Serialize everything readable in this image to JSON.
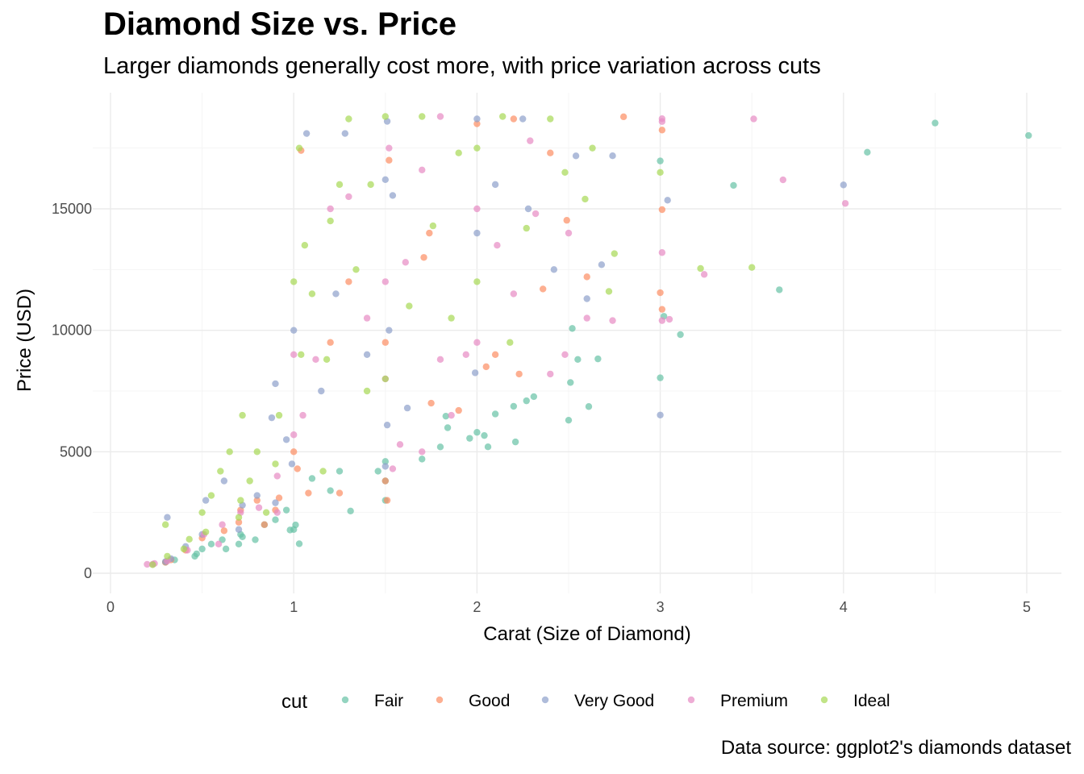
{
  "chart_data": {
    "type": "scatter",
    "title": "Diamond Size vs. Price",
    "subtitle": "Larger diamonds generally cost more, with price variation across cuts",
    "xlabel": "Carat (Size of Diamond)",
    "ylabel": "Price (USD)",
    "caption": "Data source: ggplot2's diamonds dataset",
    "xlim": [
      0,
      5.2
    ],
    "ylim": [
      0,
      19000
    ],
    "x_ticks": [
      0,
      1,
      2,
      3,
      4,
      5
    ],
    "y_ticks": [
      0,
      5000,
      10000,
      15000
    ],
    "x_tick_labels": [
      "0",
      "1",
      "2",
      "3",
      "4",
      "5"
    ],
    "y_tick_labels": [
      "0",
      "5000",
      "10000",
      "15000"
    ],
    "grid": true,
    "legend": {
      "title": "cut",
      "position": "bottom"
    },
    "series": [
      {
        "name": "Fair",
        "color": "#66C2A5",
        "points": [
          [
            5.01,
            18018
          ],
          [
            4.5,
            18531
          ],
          [
            4.13,
            17329
          ],
          [
            3.65,
            11668
          ],
          [
            3.4,
            15964
          ],
          [
            3.11,
            9823
          ],
          [
            3.02,
            10577
          ],
          [
            3.0,
            16970
          ],
          [
            3.0,
            8044
          ],
          [
            2.5,
            6300
          ],
          [
            2.51,
            7851
          ],
          [
            2.52,
            10076
          ],
          [
            2.55,
            8801
          ],
          [
            2.61,
            6861
          ],
          [
            2.66,
            8823
          ],
          [
            2.31,
            7269
          ],
          [
            2.27,
            7098
          ],
          [
            2.2,
            6872
          ],
          [
            2.1,
            6555
          ],
          [
            2.04,
            5669
          ],
          [
            2.0,
            5800
          ],
          [
            1.96,
            5554
          ],
          [
            2.06,
            5203
          ],
          [
            2.21,
            5405
          ],
          [
            1.84,
            5990
          ],
          [
            1.83,
            6466
          ],
          [
            1.8,
            5200
          ],
          [
            1.7,
            4700
          ],
          [
            1.5,
            3800
          ],
          [
            1.5,
            4600
          ],
          [
            1.46,
            4200
          ],
          [
            1.31,
            2562
          ],
          [
            1.03,
            1213
          ],
          [
            1.0,
            1800
          ],
          [
            0.98,
            1780
          ],
          [
            0.9,
            2200
          ],
          [
            0.84,
            2000
          ],
          [
            0.79,
            1380
          ],
          [
            0.7,
            1200
          ],
          [
            0.72,
            1500
          ],
          [
            0.61,
            1380
          ],
          [
            0.5,
            1000
          ],
          [
            0.47,
            800
          ],
          [
            0.35,
            550
          ],
          [
            0.3,
            450
          ],
          [
            0.96,
            2600
          ],
          [
            1.2,
            3400
          ],
          [
            1.1,
            3900
          ],
          [
            1.25,
            4200
          ],
          [
            1.5,
            3000
          ],
          [
            1.01,
            1990
          ],
          [
            0.71,
            1600
          ],
          [
            0.63,
            1000
          ],
          [
            0.55,
            1200
          ],
          [
            0.46,
            700
          ]
        ]
      },
      {
        "name": "Good",
        "color": "#FC8D62",
        "points": [
          [
            2.8,
            18788
          ],
          [
            3.01,
            18242
          ],
          [
            3.01,
            14967
          ],
          [
            3.0,
            11548
          ],
          [
            3.01,
            10863
          ],
          [
            2.49,
            14528
          ],
          [
            2.4,
            17300
          ],
          [
            2.2,
            18700
          ],
          [
            2.0,
            18500
          ],
          [
            2.1,
            9000
          ],
          [
            2.05,
            8500
          ],
          [
            1.74,
            14000
          ],
          [
            1.75,
            7000
          ],
          [
            1.5,
            9500
          ],
          [
            1.5,
            3800
          ],
          [
            1.51,
            3000
          ],
          [
            1.25,
            3300
          ],
          [
            1.08,
            3300
          ],
          [
            1.02,
            4300
          ],
          [
            1.0,
            5000
          ],
          [
            0.9,
            2600
          ],
          [
            0.92,
            3100
          ],
          [
            0.84,
            2000
          ],
          [
            0.8,
            3000
          ],
          [
            0.71,
            2600
          ],
          [
            0.7,
            2100
          ],
          [
            0.62,
            1750
          ],
          [
            0.5,
            1450
          ],
          [
            0.41,
            950
          ],
          [
            0.33,
            550
          ],
          [
            0.3,
            450
          ],
          [
            1.2,
            9500
          ],
          [
            1.3,
            12000
          ],
          [
            1.52,
            17000
          ],
          [
            1.04,
            17400
          ],
          [
            1.71,
            13000
          ],
          [
            1.9,
            6700
          ],
          [
            2.23,
            8200
          ],
          [
            2.36,
            11700
          ],
          [
            2.6,
            12200
          ]
        ]
      },
      {
        "name": "Very Good",
        "color": "#8DA0CB",
        "points": [
          [
            4.0,
            15984
          ],
          [
            3.04,
            15354
          ],
          [
            3.0,
            6512
          ],
          [
            2.54,
            17180
          ],
          [
            2.74,
            17184
          ],
          [
            2.68,
            12700
          ],
          [
            2.6,
            11300
          ],
          [
            2.25,
            18700
          ],
          [
            2.0,
            18700
          ],
          [
            2.0,
            14000
          ],
          [
            1.99,
            8250
          ],
          [
            1.51,
            18600
          ],
          [
            1.5,
            16200
          ],
          [
            1.54,
            15550
          ],
          [
            1.52,
            10000
          ],
          [
            1.5,
            4400
          ],
          [
            1.51,
            6100
          ],
          [
            1.28,
            18100
          ],
          [
            1.07,
            18100
          ],
          [
            1.0,
            10000
          ],
          [
            0.99,
            4500
          ],
          [
            0.96,
            5500
          ],
          [
            0.9,
            7800
          ],
          [
            0.9,
            2900
          ],
          [
            0.88,
            6400
          ],
          [
            0.8,
            3200
          ],
          [
            0.72,
            2800
          ],
          [
            0.7,
            1800
          ],
          [
            0.62,
            3800
          ],
          [
            0.52,
            3000
          ],
          [
            0.5,
            1600
          ],
          [
            0.41,
            1100
          ],
          [
            0.33,
            600
          ],
          [
            0.31,
            2300
          ],
          [
            0.3,
            480
          ],
          [
            1.15,
            7500
          ],
          [
            1.23,
            11500
          ],
          [
            1.4,
            9000
          ],
          [
            1.62,
            6800
          ],
          [
            2.1,
            16000
          ],
          [
            2.28,
            15000
          ],
          [
            2.42,
            12500
          ]
        ]
      },
      {
        "name": "Premium",
        "color": "#E78AC3",
        "points": [
          [
            4.01,
            15223
          ],
          [
            3.67,
            16193
          ],
          [
            3.51,
            18701
          ],
          [
            3.24,
            12300
          ],
          [
            3.05,
            10453
          ],
          [
            3.01,
            18593
          ],
          [
            3.01,
            18710
          ],
          [
            3.01,
            13200
          ],
          [
            3.01,
            10400
          ],
          [
            2.74,
            10400
          ],
          [
            2.6,
            10500
          ],
          [
            2.5,
            14000
          ],
          [
            2.48,
            9000
          ],
          [
            2.4,
            8200
          ],
          [
            2.29,
            17800
          ],
          [
            2.2,
            11500
          ],
          [
            2.0,
            15000
          ],
          [
            2.0,
            9500
          ],
          [
            1.94,
            9000
          ],
          [
            1.86,
            6500
          ],
          [
            1.8,
            18800
          ],
          [
            1.7,
            16600
          ],
          [
            1.7,
            5000
          ],
          [
            1.58,
            5300
          ],
          [
            1.54,
            4300
          ],
          [
            1.52,
            17500
          ],
          [
            1.5,
            12000
          ],
          [
            1.5,
            8000
          ],
          [
            1.3,
            15500
          ],
          [
            1.2,
            15000
          ],
          [
            1.12,
            8800
          ],
          [
            1.05,
            6500
          ],
          [
            1.0,
            9000
          ],
          [
            1.0,
            5700
          ],
          [
            0.91,
            2500
          ],
          [
            0.91,
            4000
          ],
          [
            0.81,
            2700
          ],
          [
            0.71,
            2500
          ],
          [
            0.61,
            2000
          ],
          [
            0.59,
            1200
          ],
          [
            0.51,
            1600
          ],
          [
            0.42,
            950
          ],
          [
            0.31,
            500
          ],
          [
            0.24,
            400
          ],
          [
            0.2,
            367
          ],
          [
            0.23,
            370
          ],
          [
            1.4,
            10500
          ],
          [
            1.61,
            12800
          ],
          [
            1.8,
            8800
          ],
          [
            2.11,
            13500
          ],
          [
            2.32,
            14800
          ]
        ]
      },
      {
        "name": "Ideal",
        "color": "#A6D854",
        "points": [
          [
            3.5,
            12587
          ],
          [
            3.22,
            12545
          ],
          [
            3.0,
            16500
          ],
          [
            2.75,
            13156
          ],
          [
            2.72,
            11600
          ],
          [
            2.59,
            15400
          ],
          [
            2.63,
            17500
          ],
          [
            2.48,
            16500
          ],
          [
            2.4,
            18700
          ],
          [
            2.14,
            18800
          ],
          [
            2.0,
            17500
          ],
          [
            2.0,
            12000
          ],
          [
            1.9,
            17300
          ],
          [
            1.7,
            18800
          ],
          [
            1.76,
            14300
          ],
          [
            1.5,
            18800
          ],
          [
            1.5,
            8000
          ],
          [
            1.42,
            16000
          ],
          [
            1.4,
            7500
          ],
          [
            1.3,
            18700
          ],
          [
            1.25,
            16000
          ],
          [
            1.2,
            14500
          ],
          [
            1.16,
            4200
          ],
          [
            1.1,
            11500
          ],
          [
            1.04,
            9000
          ],
          [
            1.03,
            17500
          ],
          [
            1.0,
            12000
          ],
          [
            0.92,
            6500
          ],
          [
            0.9,
            4500
          ],
          [
            0.85,
            2500
          ],
          [
            0.8,
            5000
          ],
          [
            0.72,
            6500
          ],
          [
            0.71,
            3000
          ],
          [
            0.7,
            2300
          ],
          [
            0.6,
            4200
          ],
          [
            0.55,
            3200
          ],
          [
            0.52,
            1700
          ],
          [
            0.5,
            2500
          ],
          [
            0.43,
            1400
          ],
          [
            0.4,
            1000
          ],
          [
            0.31,
            700
          ],
          [
            0.3,
            2000
          ],
          [
            0.23,
            350
          ],
          [
            1.06,
            13500
          ],
          [
            1.18,
            8800
          ],
          [
            1.34,
            12500
          ],
          [
            1.63,
            11000
          ],
          [
            1.86,
            10500
          ],
          [
            2.18,
            9500
          ],
          [
            2.27,
            14200
          ],
          [
            0.65,
            5000
          ],
          [
            0.76,
            3800
          ]
        ]
      }
    ]
  }
}
